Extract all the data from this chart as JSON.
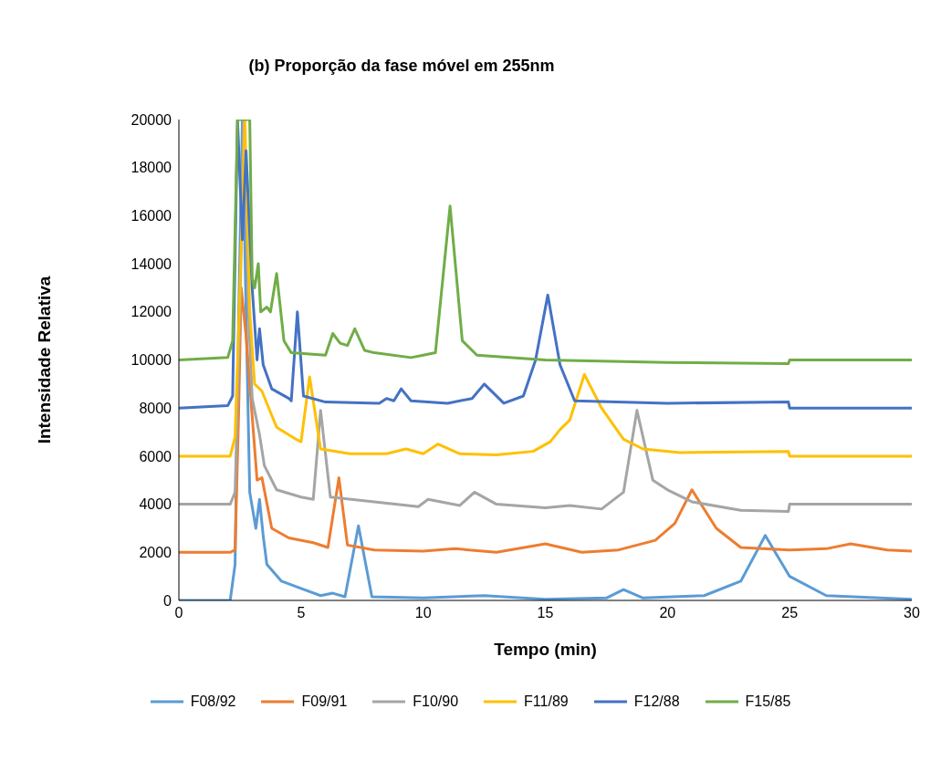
{
  "chart_data": {
    "type": "line",
    "title": "(b) Proporção da fase móvel em 255nm",
    "xlabel": "Tempo (min)",
    "ylabel": "Intensidade Relativa",
    "xlim": [
      0,
      30
    ],
    "xticks": [
      0,
      5,
      10,
      15,
      20,
      25,
      30
    ],
    "ylim": [
      0,
      20000
    ],
    "yticks": [
      0,
      2000,
      4000,
      6000,
      8000,
      10000,
      12000,
      14000,
      16000,
      18000,
      20000
    ],
    "grid": false,
    "legend": "bottom",
    "marker": "none",
    "line_style": "solid",
    "series": [
      {
        "name": "F08/92",
        "color": "#5b9bd5",
        "x": [
          0,
          2.1,
          2.3,
          2.45,
          2.6,
          2.75,
          2.9,
          3.0,
          3.15,
          3.3,
          3.45,
          3.6,
          4.2,
          5,
          5.8,
          6.3,
          6.8,
          7.35,
          7.9,
          10,
          12.5,
          15,
          17.5,
          18.2,
          19,
          21.5,
          23,
          24,
          25,
          26.5,
          30
        ],
        "values": [
          0,
          0,
          1500,
          12000,
          20000,
          12000,
          4500,
          3900,
          3000,
          4200,
          2700,
          1500,
          800,
          500,
          200,
          300,
          150,
          3100,
          150,
          100,
          200,
          50,
          100,
          450,
          100,
          200,
          800,
          2700,
          1000,
          200,
          50
        ]
      },
      {
        "name": "F09/91",
        "color": "#ed7d31",
        "x": [
          0,
          2.1,
          2.3,
          2.45,
          2.55,
          2.75,
          2.9,
          3.2,
          3.4,
          3.8,
          4.5,
          5.5,
          6.1,
          6.55,
          6.9,
          8,
          10,
          11.3,
          13,
          15,
          16.5,
          18,
          19.5,
          20.3,
          21,
          22,
          23,
          25,
          26.5,
          27.5,
          29,
          30
        ],
        "values": [
          2000,
          2000,
          2100,
          8000,
          13000,
          11000,
          9000,
          5000,
          5100,
          3000,
          2600,
          2400,
          2200,
          5100,
          2300,
          2100,
          2050,
          2150,
          2000,
          2350,
          2000,
          2100,
          2500,
          3200,
          4600,
          3000,
          2200,
          2100,
          2150,
          2350,
          2100,
          2050
        ]
      },
      {
        "name": "F10/90",
        "color": "#a5a5a5",
        "x": [
          0,
          2.1,
          2.3,
          2.5,
          2.65,
          2.85,
          3.0,
          3.3,
          3.5,
          4,
          5,
          5.5,
          5.8,
          6.2,
          8,
          9.8,
          10.2,
          11.5,
          12.1,
          13,
          15,
          16,
          17.3,
          18.2,
          18.75,
          19.4,
          20,
          21,
          23,
          24.95,
          25,
          30
        ],
        "values": [
          4000,
          4000,
          4500,
          12000,
          20000,
          12000,
          8400,
          6900,
          5600,
          4600,
          4300,
          4200,
          7900,
          4300,
          4100,
          3900,
          4200,
          3950,
          4500,
          4000,
          3850,
          3950,
          3800,
          4500,
          7900,
          5000,
          4600,
          4100,
          3750,
          3700,
          4000,
          4000
        ]
      },
      {
        "name": "F11/89",
        "color": "#ffc000",
        "x": [
          0,
          2.1,
          2.3,
          2.5,
          2.7,
          2.9,
          3.1,
          3.4,
          4,
          4.8,
          5.0,
          5.35,
          5.8,
          7,
          8.5,
          9.3,
          10,
          10.6,
          11.5,
          13,
          14.5,
          15.2,
          15.6,
          16,
          16.6,
          17.3,
          18.2,
          19,
          20.5,
          24.95,
          25,
          30
        ],
        "values": [
          6000,
          6000,
          6800,
          13000,
          20000,
          12000,
          9000,
          8700,
          7200,
          6700,
          6600,
          9300,
          6300,
          6100,
          6100,
          6300,
          6100,
          6500,
          6100,
          6050,
          6200,
          6600,
          7100,
          7500,
          9400,
          8000,
          6700,
          6300,
          6150,
          6200,
          6000,
          6000
        ]
      },
      {
        "name": "F12/88",
        "color": "#4472c4",
        "x": [
          0,
          2.0,
          2.2,
          2.4,
          2.6,
          2.75,
          3.0,
          3.2,
          3.3,
          3.45,
          3.8,
          4.5,
          4.6,
          4.85,
          5.1,
          6,
          8.2,
          8.5,
          8.8,
          9.1,
          9.5,
          11,
          12,
          12.5,
          13.3,
          14.1,
          14.6,
          15.1,
          15.6,
          16.2,
          20,
          24.95,
          25,
          30
        ],
        "values": [
          8000,
          8100,
          8500,
          20000,
          15000,
          18700,
          13000,
          10000,
          11300,
          9800,
          8800,
          8400,
          8300,
          12000,
          8500,
          8250,
          8200,
          8400,
          8300,
          8800,
          8300,
          8200,
          8400,
          9000,
          8200,
          8500,
          10000,
          12700,
          9800,
          8300,
          8200,
          8250,
          8000,
          8000
        ]
      },
      {
        "name": "F15/85",
        "color": "#70ad47",
        "x": [
          0,
          2.0,
          2.2,
          2.4,
          2.9,
          3.0,
          3.1,
          3.25,
          3.35,
          3.6,
          3.75,
          4.0,
          4.3,
          4.6,
          6.0,
          6.3,
          6.6,
          6.9,
          7.2,
          7.6,
          8.0,
          9.5,
          10.0,
          10.5,
          11.1,
          11.6,
          12.2,
          15,
          20,
          24.95,
          25,
          30
        ],
        "values": [
          10000,
          10100,
          10800,
          20000,
          20000,
          13400,
          13000,
          14000,
          12000,
          12200,
          12000,
          13600,
          10800,
          10300,
          10200,
          11100,
          10700,
          10600,
          11300,
          10400,
          10300,
          10100,
          10200,
          10300,
          16400,
          10800,
          10200,
          10000,
          9900,
          9850,
          10000,
          10000
        ]
      }
    ]
  }
}
